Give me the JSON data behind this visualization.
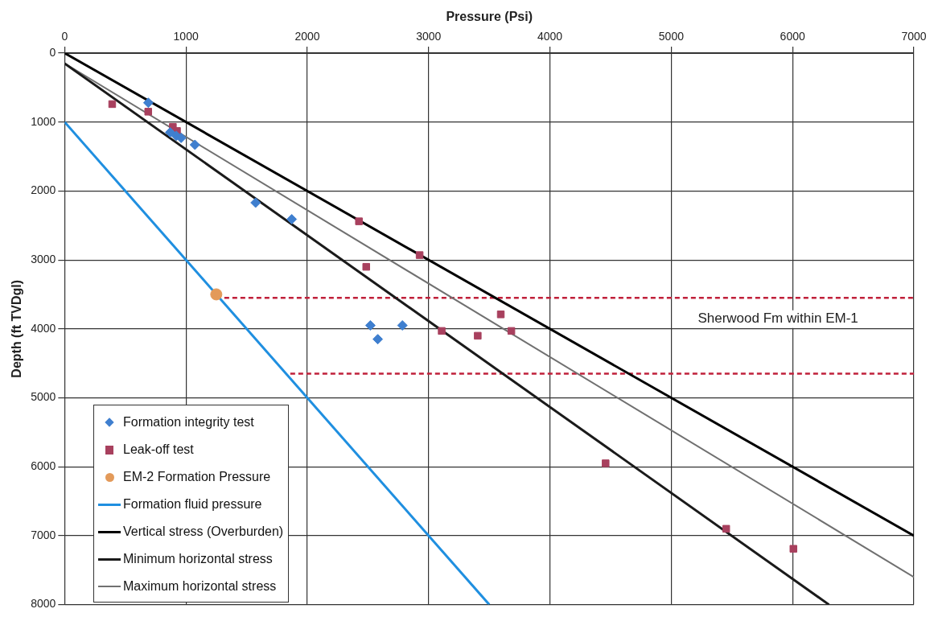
{
  "chart_data": {
    "type": "scatter",
    "xlabel": "Pressure (Psi)",
    "ylabel": "Depth (ft TVDgl)",
    "xlim": [
      0,
      7000
    ],
    "xticks": [
      0,
      1000,
      2000,
      3000,
      4000,
      5000,
      6000,
      7000
    ],
    "ylim": [
      8000,
      0
    ],
    "yticks": [
      0,
      1000,
      2000,
      3000,
      4000,
      5000,
      6000,
      7000,
      8000
    ],
    "grid": true,
    "legend": "bottom left",
    "annotations": [
      "Sherwood Fm within EM-1"
    ],
    "series": [
      {
        "name": "Formation integrity test",
        "type": "scatter",
        "marker": "diamond",
        "color": "#3f7fcf",
        "x": [
          690,
          870,
          920,
          960,
          1074,
          1574,
          1872,
          2520,
          2784,
          2581
        ],
        "values": [
          720,
          1150,
          1200,
          1230,
          1330,
          2170,
          2410,
          3950,
          3950,
          4150
        ]
      },
      {
        "name": "Leak-off test",
        "type": "scatter",
        "marker": "square",
        "color": "#a8405e",
        "x": [
          392,
          689,
          892,
          926,
          2426,
          2926,
          2486,
          3595,
          3108,
          3405,
          3682,
          4459,
          5453,
          6007
        ],
        "values": [
          740,
          850,
          1070,
          1130,
          2440,
          2930,
          3100,
          3790,
          4030,
          4100,
          4030,
          5950,
          6900,
          7190
        ]
      },
      {
        "name": "EM-2 Formation Pressure",
        "type": "scatter",
        "marker": "circle",
        "color": "#e39a5a",
        "x": [
          1250
        ],
        "values": [
          3500
        ]
      },
      {
        "name": "Formation fluid pressure",
        "type": "line",
        "marker": "none",
        "color": "#1f8fe0",
        "x": [
          0,
          3500
        ],
        "values": [
          1000,
          8000
        ]
      },
      {
        "name": "Vertical stress (Overburden)",
        "type": "line",
        "marker": "none",
        "color": "#000000",
        "x": [
          0,
          7000
        ],
        "values": [
          0,
          7000
        ]
      },
      {
        "name": "Minimum horizontal stress",
        "type": "line",
        "marker": "none",
        "color": "#1a1a1a",
        "x": [
          0,
          6300
        ],
        "values": [
          150,
          8000
        ]
      },
      {
        "name": "Maximum horizontal stress",
        "type": "line",
        "marker": "none",
        "color": "#707070",
        "x": [
          0,
          7000
        ],
        "values": [
          150,
          7600
        ]
      },
      {
        "type": "line",
        "marker": "none",
        "line_style": "dashed",
        "color": "#c0203a",
        "x": [
          1250,
          7000
        ],
        "values": [
          3550,
          3550
        ]
      },
      {
        "type": "line",
        "marker": "none",
        "line_style": "dashed",
        "color": "#c0203a",
        "x": [
          1860,
          7000
        ],
        "values": [
          4650,
          4650
        ]
      }
    ]
  }
}
